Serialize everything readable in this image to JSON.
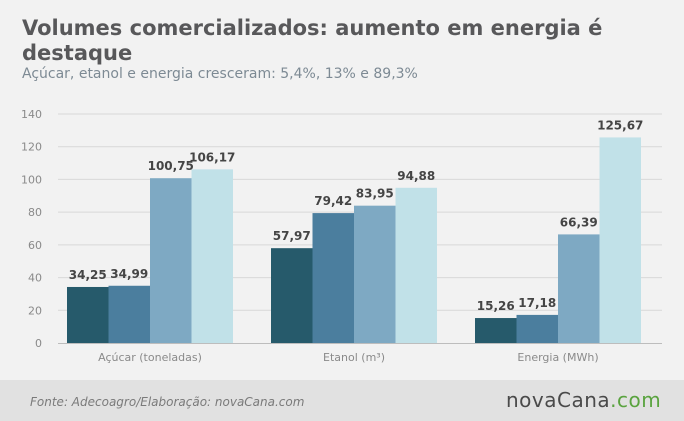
{
  "header": {
    "title": "Volumes comercializados: aumento em energia é destaque",
    "subtitle": "Açúcar, etanol e energia cresceram: 5,4%, 13% e 89,3%"
  },
  "footer": {
    "source": "Fonte:  Adecoagro/Elaboração:  novaCana.com",
    "logo_main": "novaCana",
    "logo_domain": ".com"
  },
  "colors": {
    "series": [
      "#265a6b",
      "#4b7e9e",
      "#7ea9c3",
      "#c1e1e8"
    ],
    "grid": "#d8d8d8",
    "axis": "#bdbdbd",
    "tick_label": "#8a8a8a",
    "data_label": "#454545"
  },
  "chart_data": {
    "type": "bar",
    "categories": [
      "Açúcar (toneladas)",
      "Etanol (m³)",
      "Energia (MWh)"
    ],
    "series": [
      {
        "values": [
          34.25,
          57.97,
          15.26
        ],
        "labels": [
          "34,25",
          "57,97",
          "15,26"
        ]
      },
      {
        "values": [
          34.99,
          79.42,
          17.18
        ],
        "labels": [
          "34,99",
          "79,42",
          "17,18"
        ]
      },
      {
        "values": [
          100.75,
          83.95,
          66.39
        ],
        "labels": [
          "100,75",
          "83,95",
          "66,39"
        ]
      },
      {
        "values": [
          106.17,
          94.88,
          125.67
        ],
        "labels": [
          "106,17",
          "94,88",
          "125,67"
        ]
      }
    ],
    "ylim": [
      0,
      140
    ],
    "yticks": [
      0,
      20,
      40,
      60,
      80,
      100,
      120,
      140
    ],
    "grid": true,
    "legend": "none"
  }
}
